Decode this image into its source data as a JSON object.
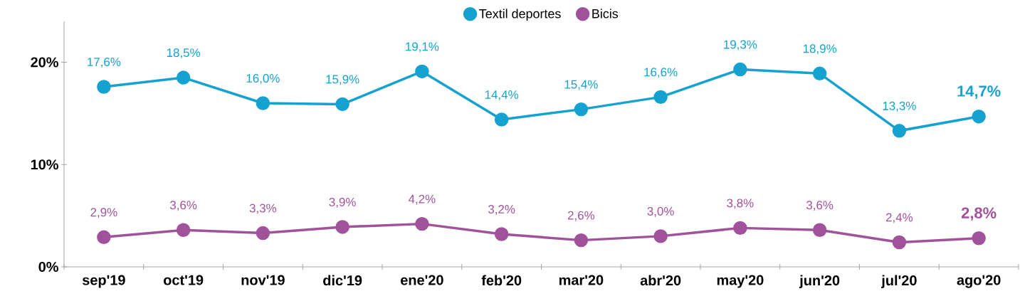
{
  "chart_data": {
    "type": "line",
    "categories": [
      "sep'19",
      "oct'19",
      "nov'19",
      "dic'19",
      "ene'20",
      "feb'20",
      "mar'20",
      "abr'20",
      "may'20",
      "jun'20",
      "jul'20",
      "ago'20"
    ],
    "series": [
      {
        "name": "Textil deportes",
        "color": "#16a2d0",
        "values": [
          17.6,
          18.5,
          16.0,
          15.9,
          19.1,
          14.4,
          15.4,
          16.6,
          19.3,
          18.9,
          13.3,
          14.7
        ],
        "value_labels": [
          "17,6%",
          "18,5%",
          "16,0%",
          "15,9%",
          "19,1%",
          "14,4%",
          "15,4%",
          "16,6%",
          "19,3%",
          "18,9%",
          "13,3%",
          "14,7%"
        ]
      },
      {
        "name": "Bicis",
        "color": "#a0529b",
        "values": [
          2.9,
          3.6,
          3.3,
          3.9,
          4.2,
          3.2,
          2.6,
          3.0,
          3.8,
          3.6,
          2.4,
          2.8
        ],
        "value_labels": [
          "2,9%",
          "3,6%",
          "3,3%",
          "3,9%",
          "4,2%",
          "3,2%",
          "2,6%",
          "3,0%",
          "3,8%",
          "3,6%",
          "2,4%",
          "2,8%"
        ]
      }
    ],
    "ylim": [
      0,
      24
    ],
    "yticks": [
      {
        "value": 0,
        "label": "0%"
      },
      {
        "value": 10,
        "label": "10%"
      },
      {
        "value": 20,
        "label": "20%"
      }
    ],
    "legend": "top",
    "marker": "circle",
    "line_style": "solid",
    "grid": false
  }
}
